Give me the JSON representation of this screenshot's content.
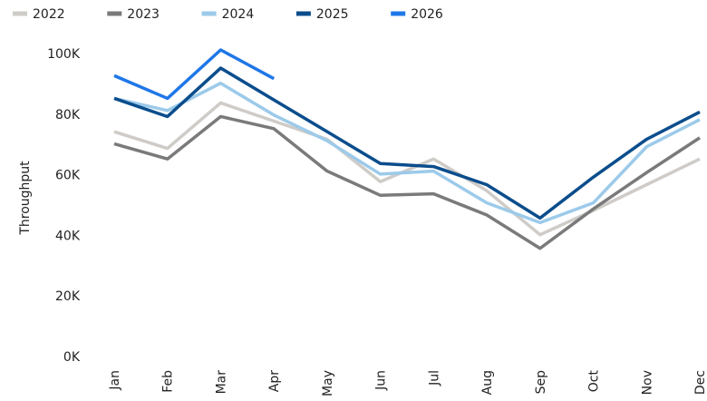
{
  "chart_data": {
    "type": "line",
    "y_label": "Throughput",
    "categories": [
      "Jan",
      "Feb",
      "Mar",
      "Apr",
      "May",
      "Jun",
      "Jul",
      "Aug",
      "Sep",
      "Oct",
      "Nov",
      "Dec"
    ],
    "series": [
      {
        "name": "2022",
        "color": "#cfccc8",
        "values": [
          74500,
          69000,
          84000,
          78000,
          72000,
          58000,
          65500,
          55000,
          40500,
          48500,
          57000,
          65500
        ]
      },
      {
        "name": "2023",
        "color": "#7a7a7a",
        "values": [
          70500,
          65500,
          79500,
          75500,
          61500,
          53500,
          54000,
          47000,
          36000,
          49000,
          61000,
          72500
        ]
      },
      {
        "name": "2024",
        "color": "#9ccaea",
        "values": [
          85500,
          81500,
          90500,
          80000,
          71500,
          60500,
          61500,
          51000,
          44500,
          51000,
          69500,
          78500
        ]
      },
      {
        "name": "2025",
        "color": "#0b4d8c",
        "values": [
          85500,
          79500,
          95500,
          85000,
          74500,
          64000,
          63000,
          57000,
          46000,
          59500,
          72000,
          81000
        ]
      },
      {
        "name": "2026",
        "color": "#1f77e8",
        "values": [
          93000,
          85500,
          101500,
          92000,
          null,
          null,
          null,
          null,
          null,
          null,
          null,
          null
        ]
      }
    ],
    "ylim": [
      0,
      105000
    ],
    "yticks": [
      {
        "value": 0,
        "label": "0K"
      },
      {
        "value": 20000,
        "label": "20K"
      },
      {
        "value": 40000,
        "label": "40K"
      },
      {
        "value": 60000,
        "label": "60K"
      },
      {
        "value": 80000,
        "label": "80K"
      },
      {
        "value": 100000,
        "label": "100K"
      }
    ],
    "grid": false,
    "legend": "top"
  }
}
